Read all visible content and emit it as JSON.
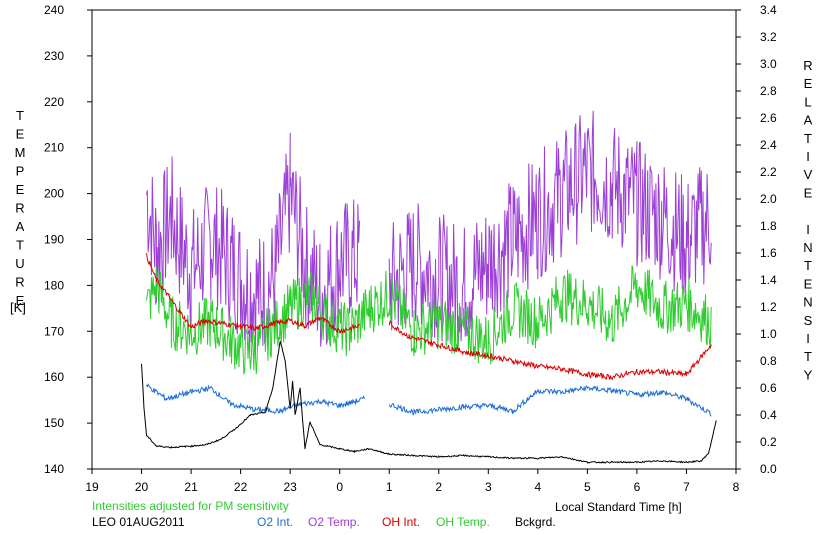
{
  "chart_data": {
    "type": "line",
    "title": "",
    "xlabel": "Local Standard Time [h]",
    "ylabel_left": "TEMPERATURE",
    "ylabel_left_unit": "[K]",
    "ylabel_right": "RELATIVE INTENSITY",
    "x_range_hours": [
      19,
      32
    ],
    "x_ticks": [
      "19",
      "20",
      "21",
      "22",
      "23",
      "0",
      "1",
      "2",
      "3",
      "4",
      "5",
      "6",
      "7",
      "8"
    ],
    "y_left_range": [
      140,
      240
    ],
    "y_left_ticks": [
      "140",
      "150",
      "160",
      "170",
      "180",
      "190",
      "200",
      "210",
      "220",
      "230",
      "240"
    ],
    "y_right_range": [
      0.0,
      3.4
    ],
    "y_right_ticks": [
      "0.0",
      "0.2",
      "0.4",
      "0.6",
      "0.8",
      "1.0",
      "1.2",
      "1.4",
      "1.6",
      "1.8",
      "2.0",
      "2.2",
      "2.4",
      "2.6",
      "2.8",
      "3.0",
      "3.2",
      "3.4"
    ],
    "note": "Intensities adjusted for PM sensitivity",
    "station": "LEO 01AUG2011",
    "grid": false,
    "legend_placement": "bottom",
    "series": [
      {
        "name": "O2 Int.",
        "axis": "right",
        "color": "#1a6fd6",
        "x": [
          20.1,
          20.5,
          21.0,
          21.4,
          21.8,
          22.3,
          22.8,
          23.2,
          23.6,
          24.0,
          24.3,
          24.5,
          24.7,
          25.0,
          25.5,
          26.0,
          26.5,
          27.0,
          27.5,
          27.8,
          28.0,
          28.5,
          29.0,
          29.5,
          30.0,
          30.5,
          31.0,
          31.5
        ],
        "y": [
          0.62,
          0.52,
          0.57,
          0.6,
          0.48,
          0.44,
          0.43,
          0.48,
          0.5,
          0.47,
          0.5,
          0.52,
          null,
          0.48,
          0.42,
          0.44,
          0.46,
          0.47,
          0.43,
          0.52,
          0.58,
          0.57,
          0.6,
          0.58,
          0.55,
          0.57,
          0.52,
          0.41
        ]
      },
      {
        "name": "O2 Temp.",
        "axis": "left",
        "color": "#9c3fd6",
        "x": [
          20.1,
          20.3,
          20.6,
          21.0,
          21.4,
          21.8,
          22.1,
          22.4,
          22.7,
          23.0,
          23.3,
          23.6,
          24.0,
          24.4,
          24.7,
          25.0,
          25.5,
          26.0,
          26.5,
          27.0,
          27.5,
          28.0,
          28.5,
          29.0,
          29.5,
          30.0,
          30.5,
          31.0,
          31.5
        ],
        "y": [
          200,
          188,
          195,
          183,
          190,
          185,
          180,
          178,
          182,
          200,
          185,
          178,
          185,
          186,
          null,
          180,
          185,
          182,
          180,
          185,
          190,
          195,
          200,
          205,
          202,
          198,
          195,
          190,
          195
        ]
      },
      {
        "name": "OH Int.",
        "axis": "right",
        "color": "#d80000",
        "x": [
          20.1,
          20.3,
          20.5,
          20.8,
          21.0,
          21.3,
          21.6,
          22.0,
          22.3,
          22.7,
          23.0,
          23.3,
          23.6,
          24.0,
          24.4,
          24.7,
          25.0,
          25.4,
          25.8,
          26.2,
          26.6,
          27.0,
          27.5,
          28.0,
          28.5,
          29.0,
          29.5,
          30.0,
          30.5,
          31.0,
          31.5
        ],
        "y": [
          1.58,
          1.4,
          1.3,
          1.15,
          1.05,
          1.1,
          1.08,
          1.06,
          1.04,
          1.08,
          1.1,
          1.06,
          1.12,
          1.02,
          1.06,
          null,
          1.08,
          0.98,
          0.94,
          0.9,
          0.86,
          0.84,
          0.8,
          0.76,
          0.74,
          0.7,
          0.68,
          0.72,
          0.72,
          0.7,
          0.92
        ]
      },
      {
        "name": "OH Temp.",
        "axis": "left",
        "color": "#2ecc2e",
        "x": [
          20.1,
          20.3,
          20.6,
          21.0,
          21.4,
          21.8,
          22.2,
          22.6,
          23.0,
          23.4,
          23.8,
          24.2,
          24.6,
          25.0,
          25.5,
          26.0,
          26.5,
          27.0,
          27.5,
          28.0,
          28.5,
          29.0,
          29.5,
          30.0,
          30.5,
          31.0,
          31.5
        ],
        "y": [
          175,
          180,
          172,
          170,
          172,
          168,
          165,
          170,
          175,
          178,
          172,
          170,
          175,
          178,
          170,
          172,
          170,
          168,
          175,
          172,
          178,
          176,
          172,
          180,
          175,
          176,
          172
        ]
      },
      {
        "name": "Bckgrd.",
        "axis": "right",
        "color": "#000000",
        "x": [
          20.0,
          20.05,
          20.1,
          20.3,
          20.6,
          21.0,
          21.3,
          21.6,
          21.9,
          22.2,
          22.5,
          22.65,
          22.8,
          22.9,
          23.0,
          23.05,
          23.1,
          23.2,
          23.3,
          23.4,
          23.6,
          24.0,
          24.3,
          24.6,
          25.0,
          25.5,
          26.0,
          26.5,
          27.0,
          27.5,
          28.0,
          28.5,
          29.0,
          29.5,
          30.0,
          30.5,
          31.0,
          31.3,
          31.45,
          31.6
        ],
        "y": [
          0.78,
          0.45,
          0.25,
          0.17,
          0.16,
          0.17,
          0.18,
          0.22,
          0.3,
          0.4,
          0.42,
          0.6,
          0.95,
          0.8,
          0.45,
          0.65,
          0.4,
          0.6,
          0.15,
          0.35,
          0.18,
          0.15,
          0.13,
          0.15,
          0.11,
          0.1,
          0.09,
          0.1,
          0.09,
          0.08,
          0.08,
          0.09,
          0.05,
          0.05,
          0.05,
          0.06,
          0.05,
          0.06,
          0.12,
          0.36
        ]
      }
    ]
  }
}
